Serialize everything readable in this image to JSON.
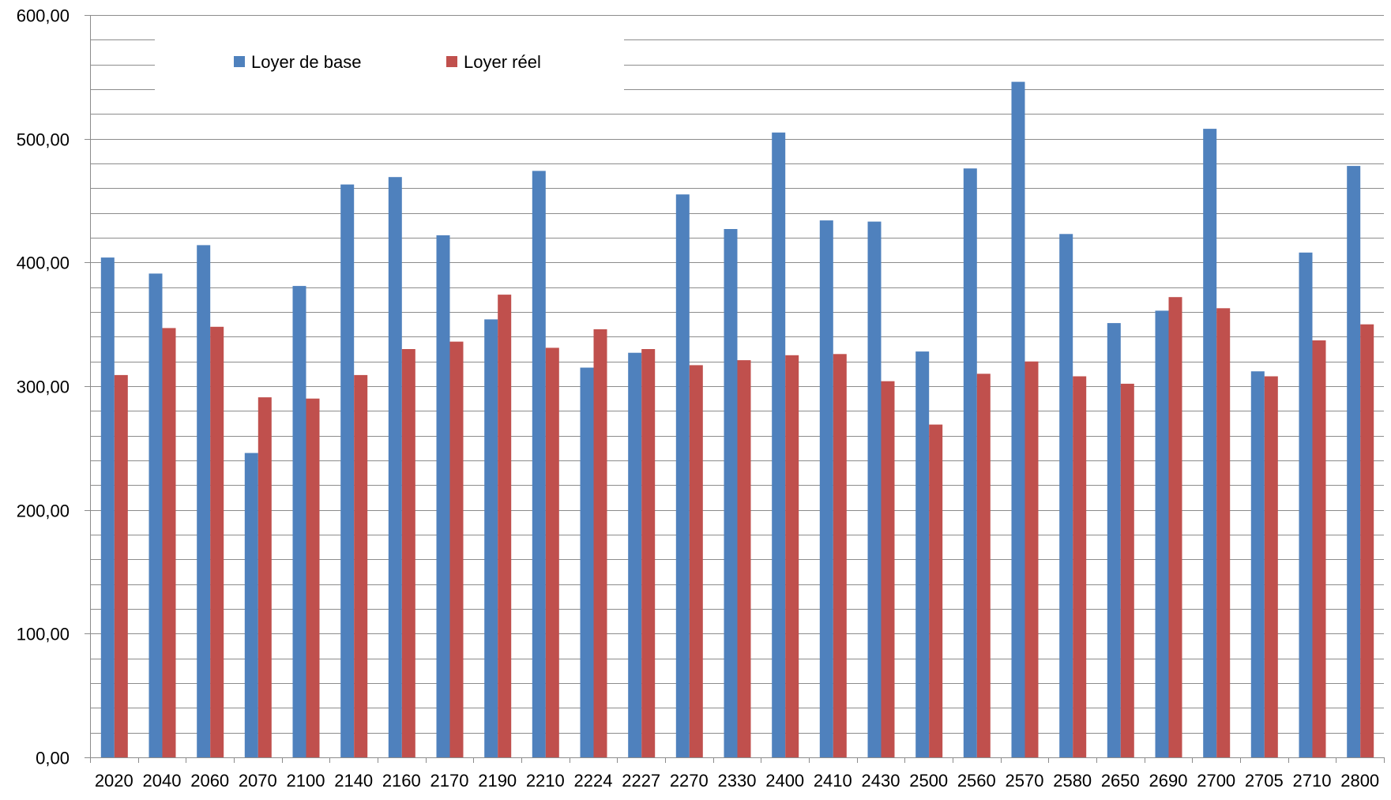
{
  "chart_data": {
    "type": "bar",
    "title": "",
    "xlabel": "",
    "ylabel": "",
    "ylim": [
      0,
      600
    ],
    "yticks": [
      "0,00",
      "100,00",
      "200,00",
      "300,00",
      "400,00",
      "500,00",
      "600,00"
    ],
    "minor_gridlines_per_major": 5,
    "grid": true,
    "legend_position": "top-left",
    "categories": [
      "2020",
      "2040",
      "2060",
      "2070",
      "2100",
      "2140",
      "2160",
      "2170",
      "2190",
      "2210",
      "2224",
      "2227",
      "2270",
      "2330",
      "2400",
      "2410",
      "2430",
      "2500",
      "2560",
      "2570",
      "2580",
      "2650",
      "2690",
      "2700",
      "2705",
      "2710",
      "2800"
    ],
    "series": [
      {
        "name": "Loyer de base",
        "color": "#4F81BD",
        "values": [
          404,
          391,
          414,
          246,
          381,
          463,
          469,
          422,
          354,
          474,
          315,
          327,
          455,
          427,
          505,
          434,
          433,
          328,
          476,
          546,
          423,
          351,
          361,
          508,
          312,
          408,
          478
        ]
      },
      {
        "name": "Loyer réel",
        "color": "#C0504D",
        "values": [
          309,
          347,
          348,
          291,
          290,
          309,
          330,
          336,
          374,
          331,
          346,
          330,
          317,
          321,
          325,
          326,
          304,
          269,
          310,
          320,
          308,
          302,
          372,
          363,
          308,
          337,
          350
        ]
      }
    ]
  }
}
